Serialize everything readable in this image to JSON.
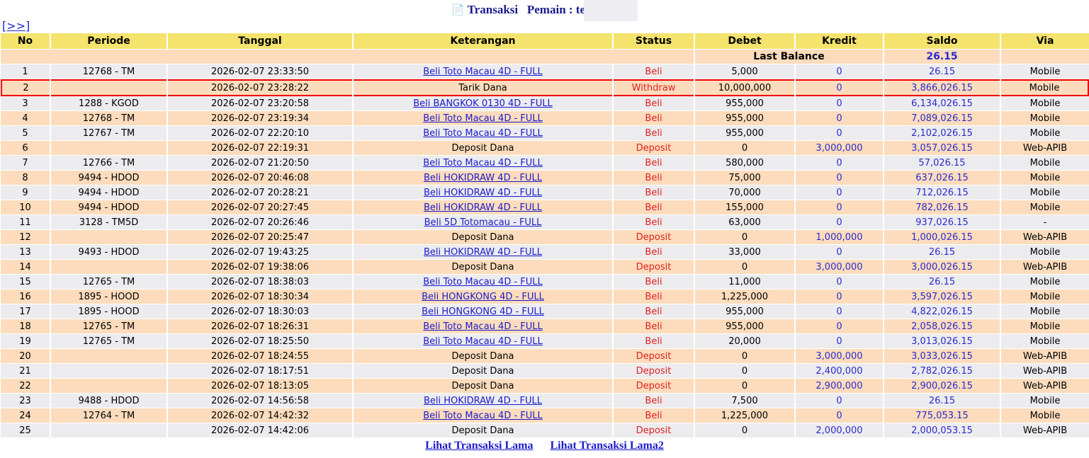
{
  "header": {
    "title": "Transaksi",
    "player_label": "Pemain : te",
    "icon": "document-icon",
    "nav": "[>>]"
  },
  "columns": [
    "No",
    "Periode",
    "Tanggal",
    "Keterangan",
    "Status",
    "Debet",
    "Kredit",
    "Saldo",
    "Via"
  ],
  "last_balance": {
    "label": "Last Balance",
    "value": "26.15"
  },
  "rows": [
    [
      "1",
      "12768 - TM",
      "2026-02-07 23:33:50",
      "Beli Toto Macau 4D - FULL",
      "Beli",
      "5,000",
      "0",
      "26.15",
      "Mobile"
    ],
    [
      "2",
      "",
      "2026-02-07 23:28:22",
      "Tarik Dana",
      "Withdraw",
      "10,000,000",
      "0",
      "3,866,026.15",
      "Mobile"
    ],
    [
      "3",
      "1288 - KGOD",
      "2026-02-07 23:20:58",
      "Beli BANGKOK 0130 4D - FULL",
      "Beli",
      "955,000",
      "0",
      "6,134,026.15",
      "Mobile"
    ],
    [
      "4",
      "12768 - TM",
      "2026-02-07 23:19:34",
      "Beli Toto Macau 4D - FULL",
      "Beli",
      "955,000",
      "0",
      "7,089,026.15",
      "Mobile"
    ],
    [
      "5",
      "12767 - TM",
      "2026-02-07 22:20:10",
      "Beli Toto Macau 4D - FULL",
      "Beli",
      "955,000",
      "0",
      "2,102,026.15",
      "Mobile"
    ],
    [
      "6",
      "",
      "2026-02-07 22:19:31",
      "Deposit Dana",
      "Deposit",
      "0",
      "3,000,000",
      "3,057,026.15",
      "Web-APIB"
    ],
    [
      "7",
      "12766 - TM",
      "2026-02-07 21:20:50",
      "Beli Toto Macau 4D - FULL",
      "Beli",
      "580,000",
      "0",
      "57,026.15",
      "Mobile"
    ],
    [
      "8",
      "9494 - HDOD",
      "2026-02-07 20:46:08",
      "Beli HOKIDRAW 4D - FULL",
      "Beli",
      "75,000",
      "0",
      "637,026.15",
      "Mobile"
    ],
    [
      "9",
      "9494 - HDOD",
      "2026-02-07 20:28:21",
      "Beli HOKIDRAW 4D - FULL",
      "Beli",
      "70,000",
      "0",
      "712,026.15",
      "Mobile"
    ],
    [
      "10",
      "9494 - HDOD",
      "2026-02-07 20:27:45",
      "Beli HOKIDRAW 4D - FULL",
      "Beli",
      "155,000",
      "0",
      "782,026.15",
      "Mobile"
    ],
    [
      "11",
      "3128 - TM5D",
      "2026-02-07 20:26:46",
      "Beli 5D Totomacau - FULL",
      "Beli",
      "63,000",
      "0",
      "937,026.15",
      "-"
    ],
    [
      "12",
      "",
      "2026-02-07 20:25:47",
      "Deposit Dana",
      "Deposit",
      "0",
      "1,000,000",
      "1,000,026.15",
      "Web-APIB"
    ],
    [
      "13",
      "9493 - HDOD",
      "2026-02-07 19:43:25",
      "Beli HOKIDRAW 4D - FULL",
      "Beli",
      "33,000",
      "0",
      "26.15",
      "Mobile"
    ],
    [
      "14",
      "",
      "2026-02-07 19:38:06",
      "Deposit Dana",
      "Deposit",
      "0",
      "3,000,000",
      "3,000,026.15",
      "Web-APIB"
    ],
    [
      "15",
      "12765 - TM",
      "2026-02-07 18:38:03",
      "Beli Toto Macau 4D - FULL",
      "Beli",
      "11,000",
      "0",
      "26.15",
      "Mobile"
    ],
    [
      "16",
      "1895 - HOOD",
      "2026-02-07 18:30:34",
      "Beli HONGKONG 4D - FULL",
      "Beli",
      "1,225,000",
      "0",
      "3,597,026.15",
      "Mobile"
    ],
    [
      "17",
      "1895 - HOOD",
      "2026-02-07 18:30:03",
      "Beli HONGKONG 4D - FULL",
      "Beli",
      "955,000",
      "0",
      "4,822,026.15",
      "Mobile"
    ],
    [
      "18",
      "12765 - TM",
      "2026-02-07 18:26:31",
      "Beli Toto Macau 4D - FULL",
      "Beli",
      "955,000",
      "0",
      "2,058,026.15",
      "Mobile"
    ],
    [
      "19",
      "12765 - TM",
      "2026-02-07 18:25:50",
      "Beli Toto Macau 4D - FULL",
      "Beli",
      "20,000",
      "0",
      "3,013,026.15",
      "Mobile"
    ],
    [
      "20",
      "",
      "2026-02-07 18:24:55",
      "Deposit Dana",
      "Deposit",
      "0",
      "3,000,000",
      "3,033,026.15",
      "Web-APIB"
    ],
    [
      "21",
      "",
      "2026-02-07 18:17:51",
      "Deposit Dana",
      "Deposit",
      "0",
      "2,400,000",
      "2,782,026.15",
      "Web-APIB"
    ],
    [
      "22",
      "",
      "2026-02-07 18:13:05",
      "Deposit Dana",
      "Deposit",
      "0",
      "2,900,000",
      "2,900,026.15",
      "Web-APIB"
    ],
    [
      "23",
      "9488 - HDOD",
      "2026-02-07 14:56:58",
      "Beli HOKIDRAW 4D - FULL",
      "Beli",
      "7,500",
      "0",
      "26.15",
      "Mobile"
    ],
    [
      "24",
      "12764 - TM",
      "2026-02-07 14:42:32",
      "Beli Toto Macau 4D - FULL",
      "Beli",
      "1,225,000",
      "0",
      "775,053.15",
      "Mobile"
    ],
    [
      "25",
      "",
      "2026-02-07 14:42:06",
      "Deposit Dana",
      "Deposit",
      "0",
      "2,000,000",
      "2,000,053.15",
      "Web-APIB"
    ]
  ],
  "highlighted_row": "2",
  "footer": {
    "link1": "Lihat Transaksi Lama",
    "link2": "Lihat Transaksi Lama2"
  },
  "colors": {
    "header": "#f4e36d",
    "odd_row": "#ececee",
    "even_row": "#fcdcbc",
    "status": "#e02020",
    "amount": "#2a2ad0",
    "highlight": "#e00000"
  }
}
